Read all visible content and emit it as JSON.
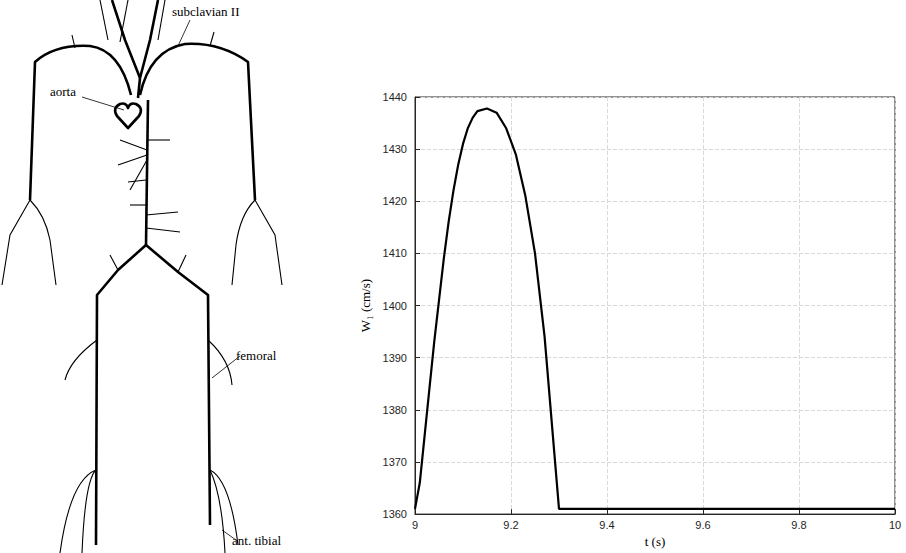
{
  "chart_data": {
    "type": "line",
    "xlabel": "t (s)",
    "ylabel": "W₁ (cm/s)",
    "x": [
      9.0,
      9.01,
      9.02,
      9.03,
      9.04,
      9.05,
      9.06,
      9.07,
      9.08,
      9.09,
      9.1,
      9.11,
      9.12,
      9.13,
      9.15,
      9.17,
      9.19,
      9.21,
      9.23,
      9.25,
      9.27,
      9.29,
      9.3,
      10.0
    ],
    "values": [
      1361,
      1366,
      1375,
      1384,
      1393,
      1401,
      1409,
      1416,
      1422,
      1427,
      1431,
      1434,
      1436,
      1437.3,
      1437.8,
      1437,
      1434,
      1429,
      1421,
      1410,
      1394,
      1372,
      1361,
      1361
    ],
    "color": "#000000",
    "line_style": "solid",
    "xlim": [
      9,
      10
    ],
    "xticks": [
      9,
      9.2,
      9.4,
      9.6,
      9.8,
      10
    ],
    "ylim": [
      1360,
      1440
    ],
    "yticks": [
      1360,
      1370,
      1380,
      1390,
      1400,
      1410,
      1420,
      1430,
      1440
    ],
    "grid": true
  },
  "diagram": {
    "labels": [
      "aorta",
      "subclavian II",
      "femoral",
      "ant. tibial"
    ]
  }
}
